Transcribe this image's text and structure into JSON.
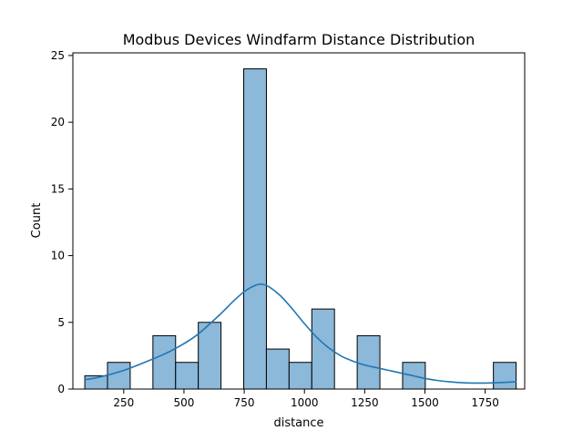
{
  "chart_data": {
    "type": "bar",
    "subtype": "histogram-with-kde",
    "title": "Modbus Devices Windfarm Distance Distribution",
    "xlabel": "distance",
    "ylabel": "Count",
    "xlim": [
      39,
      1914
    ],
    "ylim": [
      0,
      25.2
    ],
    "xticks": [
      250,
      500,
      750,
      1000,
      1250,
      1500,
      1750
    ],
    "yticks": [
      0,
      5,
      10,
      15,
      20,
      25
    ],
    "bin_start": 88.5,
    "bin_width": 94.2,
    "bins": [
      {
        "x0": 88.5,
        "x1": 182.7,
        "count": 1
      },
      {
        "x0": 182.7,
        "x1": 276.9,
        "count": 2
      },
      {
        "x0": 276.9,
        "x1": 371.1,
        "count": 0
      },
      {
        "x0": 371.1,
        "x1": 465.3,
        "count": 4
      },
      {
        "x0": 465.3,
        "x1": 559.5,
        "count": 2
      },
      {
        "x0": 559.5,
        "x1": 653.7,
        "count": 5
      },
      {
        "x0": 653.7,
        "x1": 747.9,
        "count": 0
      },
      {
        "x0": 747.9,
        "x1": 842.1,
        "count": 24
      },
      {
        "x0": 842.1,
        "x1": 936.3,
        "count": 3
      },
      {
        "x0": 936.3,
        "x1": 1030.5,
        "count": 2
      },
      {
        "x0": 1030.5,
        "x1": 1124.7,
        "count": 6
      },
      {
        "x0": 1124.7,
        "x1": 1218.9,
        "count": 0
      },
      {
        "x0": 1218.9,
        "x1": 1313.1,
        "count": 4
      },
      {
        "x0": 1313.1,
        "x1": 1407.3,
        "count": 0
      },
      {
        "x0": 1407.3,
        "x1": 1501.5,
        "count": 2
      },
      {
        "x0": 1501.5,
        "x1": 1595.7,
        "count": 0
      },
      {
        "x0": 1595.7,
        "x1": 1689.9,
        "count": 0
      },
      {
        "x0": 1689.9,
        "x1": 1784.1,
        "count": 0
      },
      {
        "x0": 1784.1,
        "x1": 1878.3,
        "count": 2
      }
    ],
    "kde": {
      "x": [
        88,
        150,
        250,
        350,
        450,
        550,
        650,
        700,
        750,
        800,
        825,
        850,
        900,
        950,
        1000,
        1050,
        1100,
        1150,
        1200,
        1250,
        1300,
        1350,
        1400,
        1450,
        1500,
        1550,
        1600,
        1650,
        1700,
        1750,
        1800,
        1850,
        1880
      ],
      "y": [
        0.7,
        0.9,
        1.4,
        2.1,
        2.9,
        4.0,
        5.6,
        6.5,
        7.3,
        7.8,
        7.85,
        7.7,
        7.0,
        6.0,
        4.9,
        3.9,
        3.1,
        2.5,
        2.1,
        1.8,
        1.6,
        1.4,
        1.2,
        1.0,
        0.8,
        0.65,
        0.55,
        0.48,
        0.45,
        0.45,
        0.48,
        0.52,
        0.55
      ]
    },
    "grid": false,
    "colors": {
      "bar_fill": "#8cb8d9",
      "bar_edge": "#000000",
      "kde_line": "#1f77b4",
      "axes": "#000000"
    }
  }
}
